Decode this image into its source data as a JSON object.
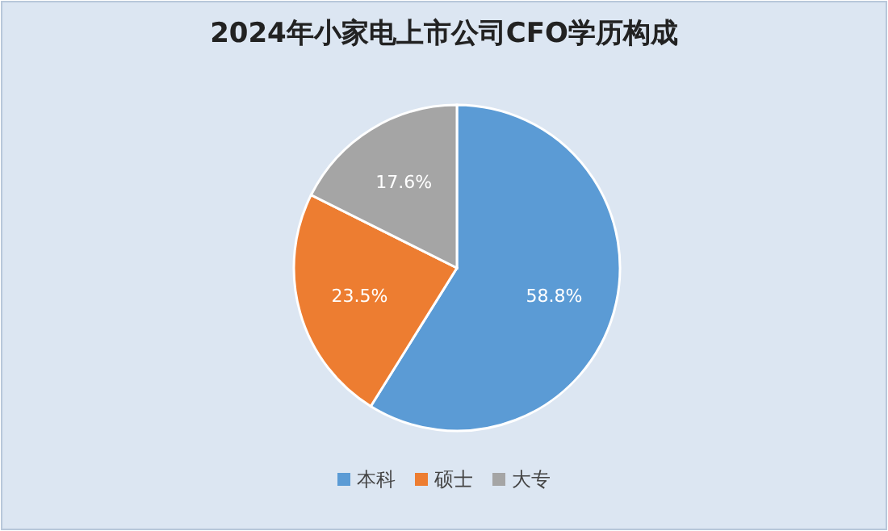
{
  "chart_data": {
    "type": "pie",
    "title": "2024年小家电上市公司CFO学历构成",
    "categories": [
      "本科",
      "硕士",
      "大专"
    ],
    "values": [
      58.8,
      23.5,
      17.6
    ],
    "colors": [
      "#5b9bd5",
      "#ed7d31",
      "#a5a5a5"
    ],
    "value_labels": [
      "58.8%",
      "23.5%",
      "17.6%"
    ],
    "legend": "bottom"
  }
}
